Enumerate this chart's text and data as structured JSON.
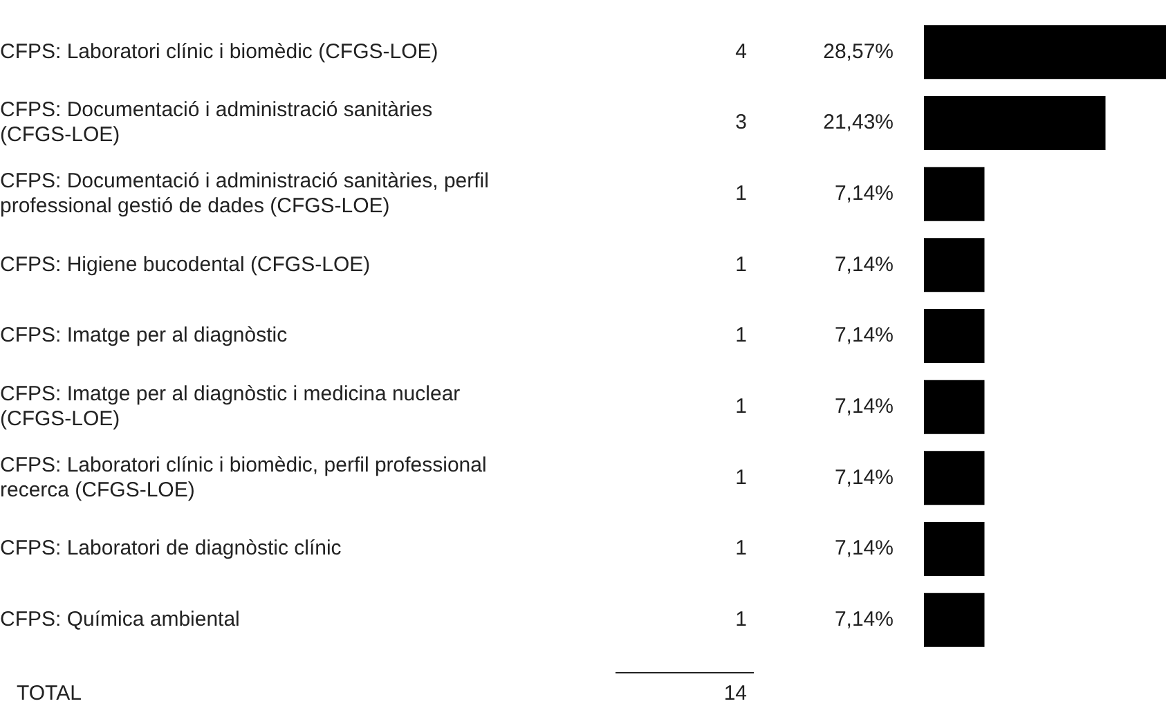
{
  "chart_data": {
    "type": "bar",
    "orientation": "horizontal",
    "categories": [
      "CFPS: Laboratori clínic i biomèdic (CFGS-LOE)",
      "CFPS: Documentació i administració sanitàries (CFGS-LOE)",
      "CFPS: Documentació i administració sanitàries, perfil professional gestió de dades (CFGS-LOE)",
      "CFPS: Higiene bucodental (CFGS-LOE)",
      "CFPS: Imatge per al diagnòstic",
      "CFPS: Imatge per al diagnòstic i medicina nuclear (CFGS-LOE)",
      "CFPS: Laboratori clínic i biomèdic, perfil professional recerca (CFGS-LOE)",
      "CFPS: Laboratori de diagnòstic clínic",
      "CFPS: Química ambiental"
    ],
    "values": [
      4,
      3,
      1,
      1,
      1,
      1,
      1,
      1,
      1
    ],
    "color": "#000000",
    "tick_labels": "y",
    "grid": false,
    "legend": false,
    "data_labels": true,
    "annotations": [
      "28,57%",
      "21,43%",
      "7,14%",
      "7,14%",
      "7,14%",
      "7,14%",
      "7,14%",
      "7,14%",
      "7,14%",
      "TOTAL",
      "14"
    ]
  }
}
